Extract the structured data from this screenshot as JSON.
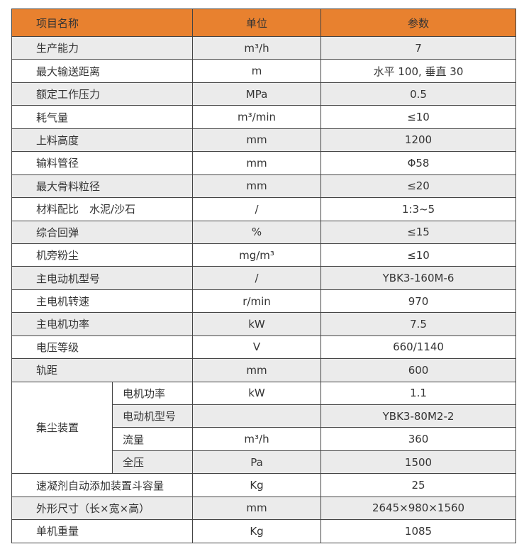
{
  "header": {
    "name": "项目名称",
    "unit": "单位",
    "param": "参数"
  },
  "rows_top": [
    {
      "name": "生产能力",
      "unit": "m³/h",
      "value": "7"
    },
    {
      "name": "最大输送距离",
      "unit": "m",
      "value": "水平 100, 垂直 30"
    },
    {
      "name": "额定工作压力",
      "unit": "MPa",
      "value": "0.5"
    },
    {
      "name": "耗气量",
      "unit": "m³/min",
      "value": "≤10"
    },
    {
      "name": "上料高度",
      "unit": "mm",
      "value": "1200"
    },
    {
      "name": "输料管径",
      "unit": "mm",
      "value": "Φ58"
    },
    {
      "name": "最大骨料粒径",
      "unit": "mm",
      "value": "≤20"
    },
    {
      "name": "材料配比　水泥/沙石",
      "unit": "/",
      "value": "1:3~5"
    },
    {
      "name": "综合回弹",
      "unit": "%",
      "value": "≤15"
    },
    {
      "name": "机旁粉尘",
      "unit": "mg/m³",
      "value": "≤10"
    },
    {
      "name": "主电动机型号",
      "unit": "/",
      "value": "YBK3-160M-6"
    },
    {
      "name": "主电机转速",
      "unit": "r/min",
      "value": "970"
    },
    {
      "name": "主电机功率",
      "unit": "kW",
      "value": "7.5"
    },
    {
      "name": "电压等级",
      "unit": "V",
      "value": "660/1140"
    },
    {
      "name": "轨距",
      "unit": "mm",
      "value": "600"
    }
  ],
  "dust_collector": {
    "name": "集尘装置",
    "items": [
      {
        "name": "电机功率",
        "unit": "kW",
        "value": "1.1"
      },
      {
        "name": "电动机型号",
        "unit": "",
        "value": "YBK3-80M2-2"
      },
      {
        "name": "流量",
        "unit": "m³/h",
        "value": "360"
      },
      {
        "name": "全压",
        "unit": "Pa",
        "value": "1500"
      }
    ]
  },
  "rows_bottom": [
    {
      "name": "速凝剂自动添加装置斗容量",
      "unit": "Kg",
      "value": "25"
    },
    {
      "name": "外形尺寸（长×宽×高）",
      "unit": "mm",
      "value": "2645×980×1560"
    },
    {
      "name": "单机重量",
      "unit": "Kg",
      "value": "1085"
    }
  ],
  "colors": {
    "header_bg": "#e8812f",
    "stripe_bg": "#ebebeb"
  }
}
